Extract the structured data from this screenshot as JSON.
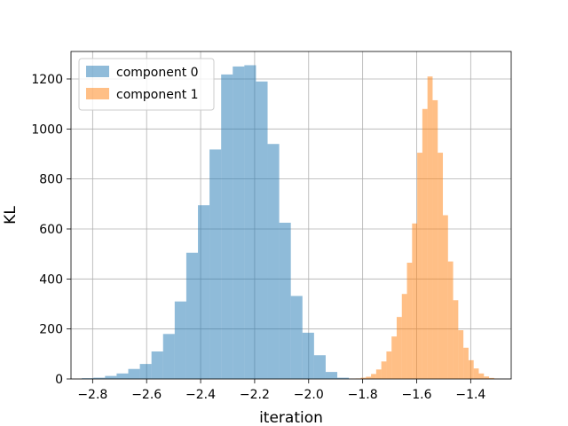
{
  "chart_data": {
    "type": "bar",
    "subtype": "histogram",
    "xlabel": "iteration",
    "ylabel": "KL",
    "xlim": [
      -2.88,
      -1.25
    ],
    "ylim": [
      0,
      1310
    ],
    "grid": true,
    "legend_position": "top-left",
    "x_ticks": [
      -2.8,
      -2.6,
      -2.4,
      -2.2,
      -2.0,
      -1.8,
      -1.6,
      -1.4
    ],
    "x_tick_labels": [
      "−2.8",
      "−2.6",
      "−2.4",
      "−2.2",
      "−2.0",
      "−1.8",
      "−1.6",
      "−1.4"
    ],
    "y_ticks": [
      0,
      200,
      400,
      600,
      800,
      1000,
      1200
    ],
    "y_tick_labels": [
      "0",
      "200",
      "400",
      "600",
      "800",
      "1000",
      "1200"
    ],
    "series": [
      {
        "name": "component 0",
        "color": "#1f77b4",
        "alpha": 0.5,
        "bin_edges": [
          -2.84,
          -2.797,
          -2.754,
          -2.711,
          -2.668,
          -2.625,
          -2.582,
          -2.539,
          -2.496,
          -2.453,
          -2.41,
          -2.367,
          -2.324,
          -2.281,
          -2.238,
          -2.195,
          -2.152,
          -2.109,
          -2.066,
          -2.023,
          -1.98,
          -1.937,
          -1.894,
          -1.851
        ],
        "counts": [
          3,
          5,
          12,
          22,
          40,
          60,
          110,
          180,
          310,
          505,
          695,
          918,
          1218,
          1250,
          1255,
          1190,
          940,
          625,
          332,
          185,
          95,
          28,
          5
        ]
      },
      {
        "name": "component 1",
        "color": "#ff7f0e",
        "alpha": 0.5,
        "bin_edges": [
          -1.845,
          -1.826,
          -1.807,
          -1.788,
          -1.769,
          -1.75,
          -1.731,
          -1.712,
          -1.693,
          -1.674,
          -1.655,
          -1.636,
          -1.617,
          -1.598,
          -1.579,
          -1.56,
          -1.541,
          -1.522,
          -1.503,
          -1.484,
          -1.465,
          -1.446,
          -1.427,
          -1.408,
          -1.389,
          -1.37,
          -1.351,
          -1.332,
          -1.313,
          -1.294
        ],
        "counts": [
          1,
          2,
          5,
          9,
          20,
          38,
          70,
          110,
          170,
          248,
          340,
          465,
          622,
          905,
          1080,
          1210,
          1115,
          905,
          655,
          470,
          315,
          195,
          125,
          75,
          42,
          22,
          10,
          4,
          1
        ]
      }
    ]
  }
}
